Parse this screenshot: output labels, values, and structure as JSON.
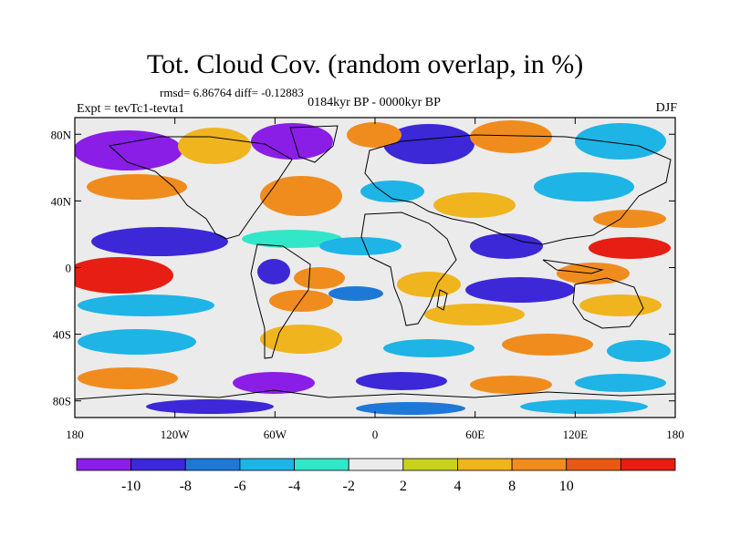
{
  "title": "Tot. Cloud Cov. (random overlap, in %)",
  "stats": "rmsd= 6.86764  diff= -0.12883",
  "period": "0184kyr BP - 0000kyr BP",
  "experiment": "Expt = tevTc1-tevta1",
  "season": "DJF",
  "map": {
    "projection": "cylindrical equidistant",
    "lon_range": [
      -180,
      180
    ],
    "lat_range": [
      -90,
      90
    ],
    "x_ticks": [
      {
        "lon": -180,
        "label": "180"
      },
      {
        "lon": -120,
        "label": "120W"
      },
      {
        "lon": -60,
        "label": "60W"
      },
      {
        "lon": 0,
        "label": "0"
      },
      {
        "lon": 60,
        "label": "60E"
      },
      {
        "lon": 120,
        "label": "120E"
      },
      {
        "lon": 180,
        "label": "180"
      }
    ],
    "y_ticks": [
      {
        "lat": 80,
        "label": "80N"
      },
      {
        "lat": 40,
        "label": "40N"
      },
      {
        "lat": 0,
        "label": "0"
      },
      {
        "lat": -40,
        "label": "40S"
      },
      {
        "lat": -80,
        "label": "80S"
      }
    ]
  },
  "colorbar": {
    "colors": [
      "#8a1ee6",
      "#3c28d7",
      "#1e78d7",
      "#1eb4e6",
      "#32e6c8",
      "#ebebeb",
      "#c8d21e",
      "#f0b41e",
      "#f08c1e",
      "#e65a14",
      "#e61e14"
    ],
    "tick_labels": [
      "-10",
      "-8",
      "-6",
      "-4",
      "-2",
      "2",
      "4",
      "8",
      "10"
    ]
  }
}
